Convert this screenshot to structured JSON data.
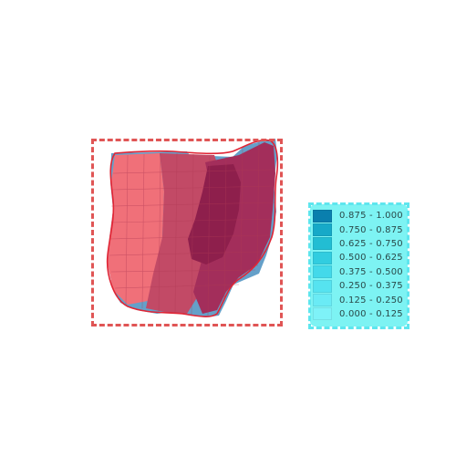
{
  "legend": {
    "items": [
      {
        "label": "0.875 - 1.000",
        "color": "#0a7fae"
      },
      {
        "label": "0.750 - 0.875",
        "color": "#16a9c8"
      },
      {
        "label": "0.625 - 0.750",
        "color": "#22bdd3"
      },
      {
        "label": "0.500 - 0.625",
        "color": "#31cde0"
      },
      {
        "label": "0.375 - 0.500",
        "color": "#43d9ea"
      },
      {
        "label": "0.250 - 0.375",
        "color": "#56e3f0"
      },
      {
        "label": "0.125 - 0.250",
        "color": "#6aebf5"
      },
      {
        "label": "0.000 - 0.125",
        "color": "#7ef2f8"
      }
    ]
  },
  "map": {
    "outline_color": "#e02535",
    "fill_light": "#f07079",
    "fill_dark": "#8e1f4c",
    "base_blue": "#4a8fbf"
  },
  "frames": {
    "map_border_color": "#e05555",
    "legend_border_color": "#5ee6ee"
  }
}
